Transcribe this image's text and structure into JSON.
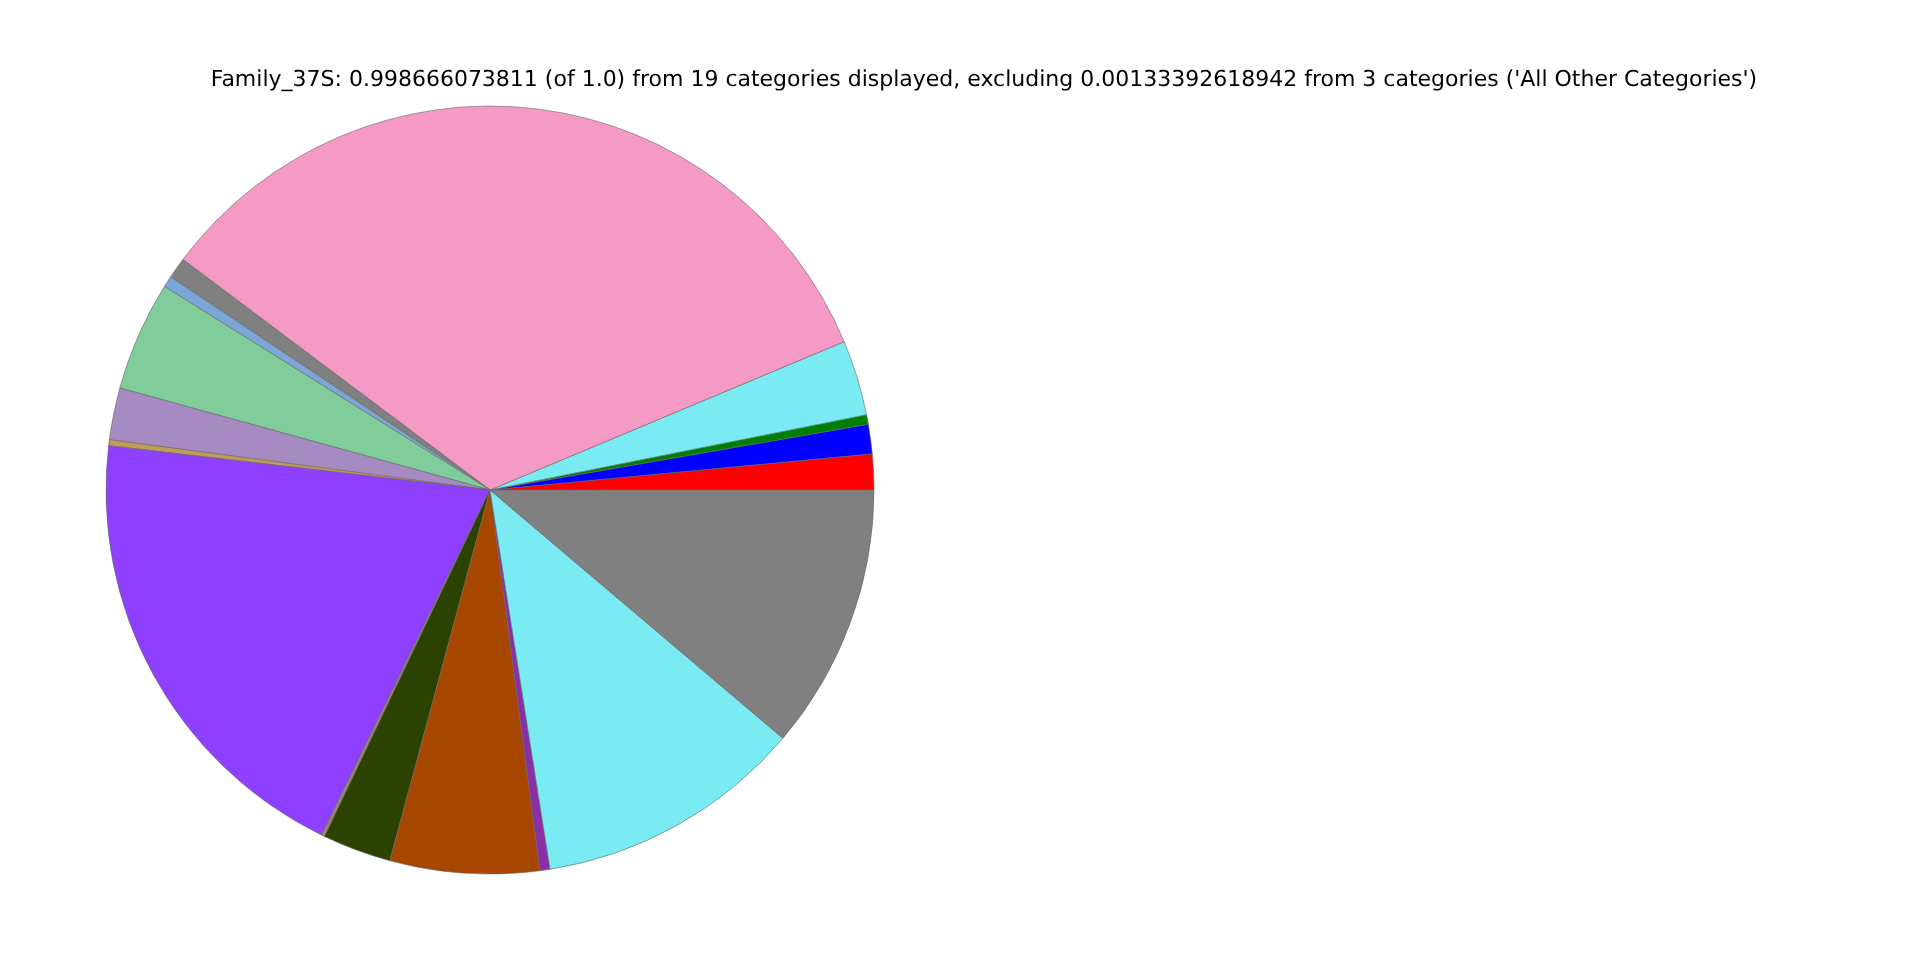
{
  "chart_data": {
    "type": "pie",
    "title": "Family_37S: 0.998666073811 (of 1.0) from 19 categories displayed, excluding 0.00133392618942 from 3 categories ('All Other Categories')",
    "categories": [
      null,
      null,
      null,
      null,
      null,
      null,
      null,
      null,
      null,
      null,
      null,
      null,
      null,
      null,
      null,
      null,
      null
    ],
    "values": [
      1.5,
      1.24,
      0.4,
      3.17,
      33.44,
      0.89,
      0.47,
      4.61,
      2.19,
      0.25,
      19.61,
      0.14,
      2.89,
      6.28,
      0.42,
      11.31,
      11.19
    ],
    "colors": [
      "#ff0000",
      "#0000ff",
      "#008000",
      "#7aebf2",
      "#f49ac4",
      "#808080",
      "#7aa6d8",
      "#80cc9a",
      "#a68bc2",
      "#c29a5a",
      "#8f3fff",
      "#a0826d",
      "#2b4200",
      "#a84800",
      "#8b2fa8",
      "#7aebf2",
      "#808080"
    ],
    "legend": false
  }
}
